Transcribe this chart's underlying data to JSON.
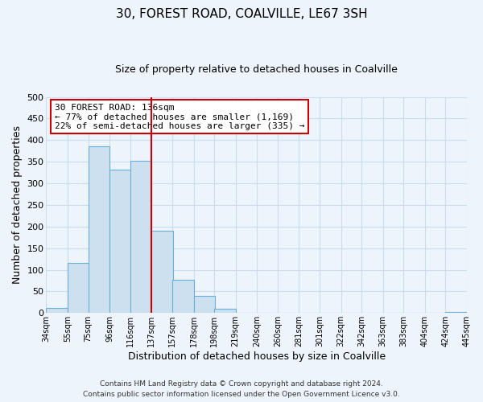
{
  "title": "30, FOREST ROAD, COALVILLE, LE67 3SH",
  "subtitle": "Size of property relative to detached houses in Coalville",
  "xlabel": "Distribution of detached houses by size in Coalville",
  "ylabel": "Number of detached properties",
  "bar_left_edges": [
    34,
    55,
    75,
    96,
    116,
    137,
    157,
    178,
    198,
    219,
    240,
    260,
    281,
    301,
    322,
    342,
    363,
    383,
    404,
    424
  ],
  "bar_heights": [
    12,
    115,
    385,
    332,
    353,
    190,
    76,
    39,
    10,
    0,
    0,
    0,
    0,
    0,
    0,
    0,
    0,
    0,
    0,
    3
  ],
  "bin_width": 21,
  "bar_color": "#cce0f0",
  "bar_edge_color": "#6aadd5",
  "ylim": [
    0,
    500
  ],
  "yticks": [
    0,
    50,
    100,
    150,
    200,
    250,
    300,
    350,
    400,
    450,
    500
  ],
  "xtick_labels": [
    "34sqm",
    "55sqm",
    "75sqm",
    "96sqm",
    "116sqm",
    "137sqm",
    "157sqm",
    "178sqm",
    "198sqm",
    "219sqm",
    "240sqm",
    "260sqm",
    "281sqm",
    "301sqm",
    "322sqm",
    "342sqm",
    "363sqm",
    "383sqm",
    "404sqm",
    "424sqm",
    "445sqm"
  ],
  "vline_x": 137,
  "vline_color": "#cc0000",
  "annotation_line1": "30 FOREST ROAD: 136sqm",
  "annotation_line2": "← 77% of detached houses are smaller (1,169)",
  "annotation_line3": "22% of semi-detached houses are larger (335) →",
  "annotation_box_color": "#cc0000",
  "annotation_box_fill": "#ffffff",
  "footer_line1": "Contains HM Land Registry data © Crown copyright and database right 2024.",
  "footer_line2": "Contains public sector information licensed under the Open Government Licence v3.0.",
  "grid_color": "#c8ddf0",
  "background_color": "#edf4fc",
  "title_fontsize": 11,
  "subtitle_fontsize": 9
}
